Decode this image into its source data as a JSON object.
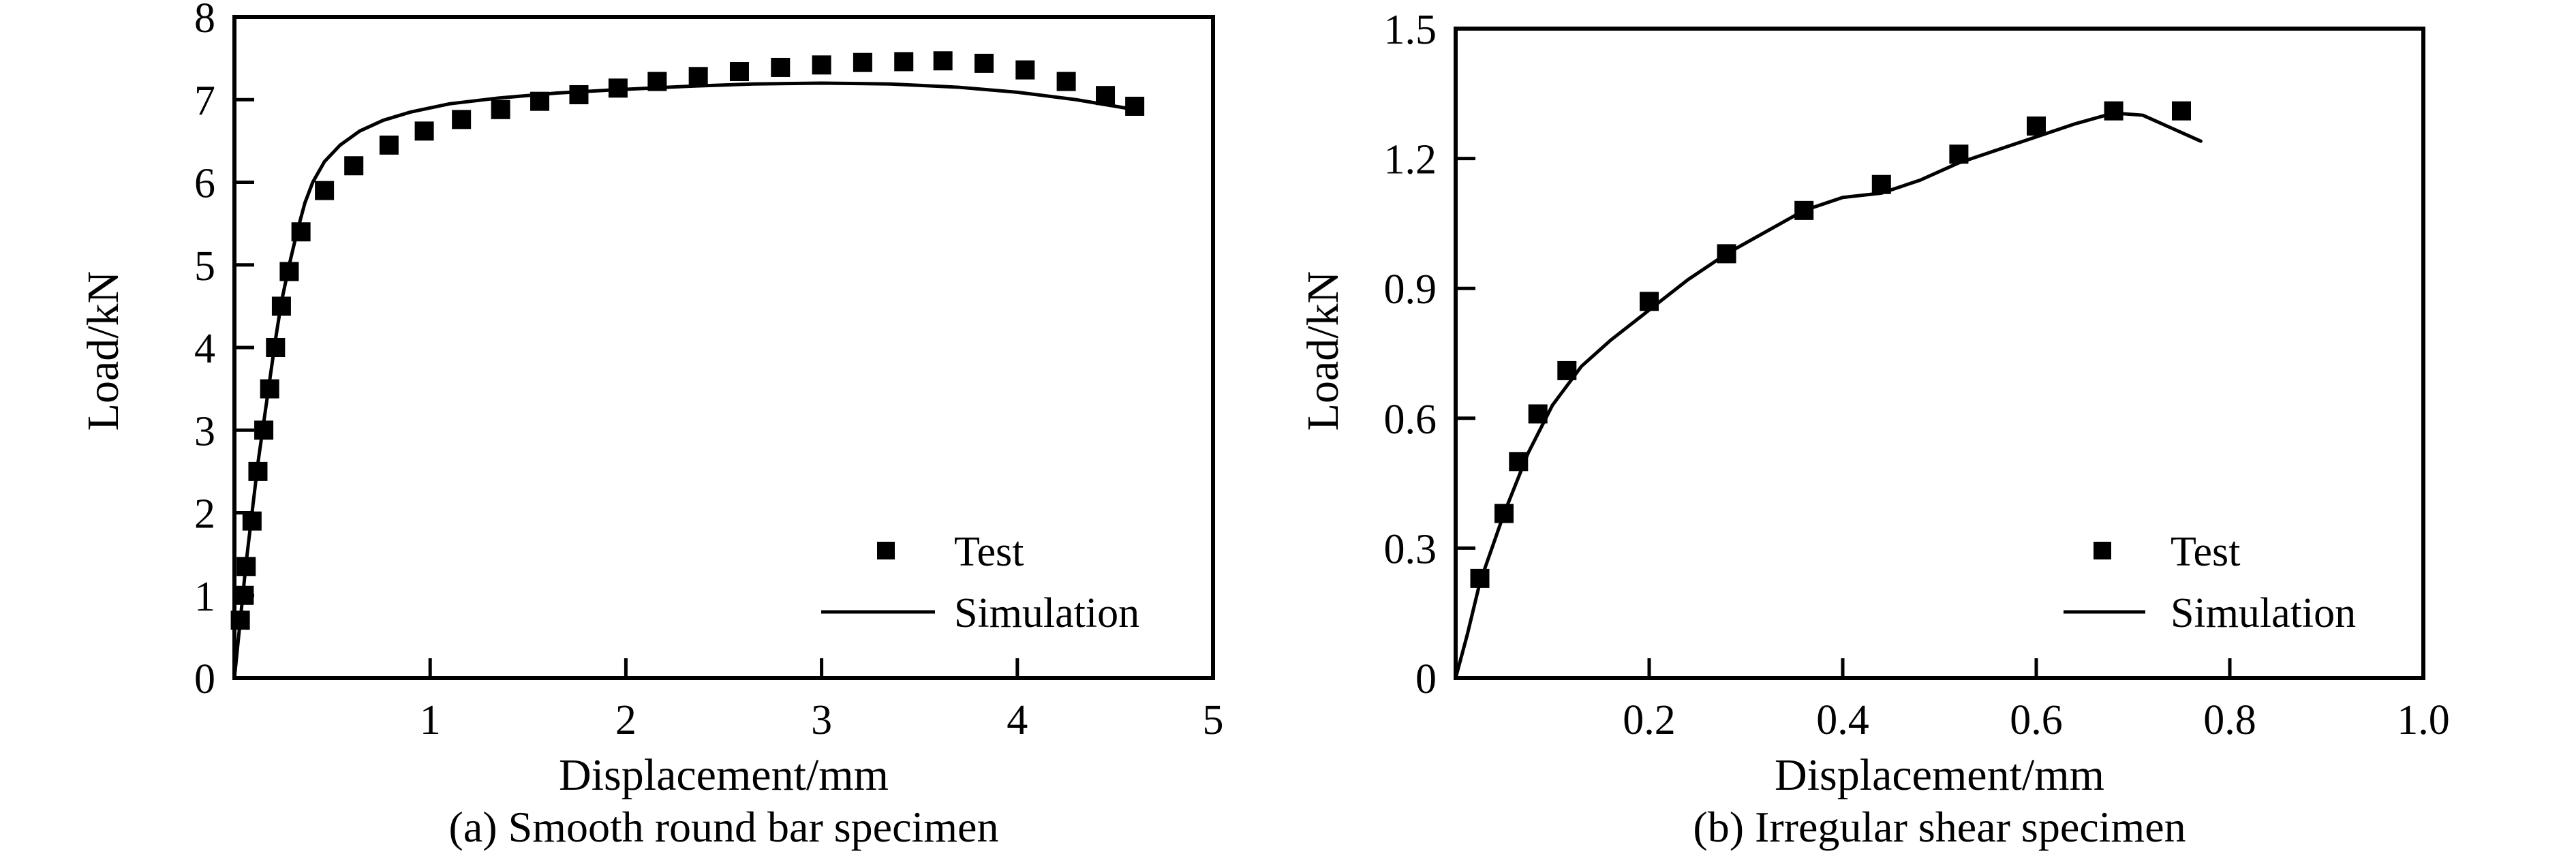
{
  "figure": {
    "background_color": "#ffffff",
    "ink_color": "#000000"
  },
  "chart_data": [
    {
      "type": "scatter",
      "title": "(a) Smooth round bar specimen",
      "xlabel": "Displacement/mm",
      "ylabel": "Load/kN",
      "xlim": [
        0,
        5
      ],
      "ylim": [
        0,
        8
      ],
      "grid": false,
      "xticks": [
        {
          "v": 1,
          "label": "1"
        },
        {
          "v": 2,
          "label": "2"
        },
        {
          "v": 3,
          "label": "3"
        },
        {
          "v": 4,
          "label": "4"
        },
        {
          "v": 5,
          "label": "5"
        }
      ],
      "yticks": [
        {
          "v": 0,
          "label": "0"
        },
        {
          "v": 1,
          "label": "1"
        },
        {
          "v": 2,
          "label": "2"
        },
        {
          "v": 3,
          "label": "3"
        },
        {
          "v": 4,
          "label": "4"
        },
        {
          "v": 5,
          "label": "5"
        },
        {
          "v": 6,
          "label": "6"
        },
        {
          "v": 7,
          "label": "7"
        },
        {
          "v": 8,
          "label": "8"
        }
      ],
      "legend": {
        "position": "inside lower right",
        "items": [
          {
            "swatch": "square-marker",
            "label": "Test"
          },
          {
            "swatch": "line",
            "label": "Simulation"
          }
        ]
      },
      "series": [
        {
          "name": "Test",
          "type": "scatter",
          "marker": "filled-square",
          "points": [
            [
              0.03,
              0.7
            ],
            [
              0.05,
              1.0
            ],
            [
              0.06,
              1.35
            ],
            [
              0.09,
              1.9
            ],
            [
              0.12,
              2.5
            ],
            [
              0.15,
              3.0
            ],
            [
              0.18,
              3.5
            ],
            [
              0.21,
              4.0
            ],
            [
              0.24,
              4.5
            ],
            [
              0.28,
              4.92
            ],
            [
              0.34,
              5.4
            ],
            [
              0.46,
              5.9
            ],
            [
              0.61,
              6.2
            ],
            [
              0.79,
              6.45
            ],
            [
              0.97,
              6.62
            ],
            [
              1.16,
              6.76
            ],
            [
              1.36,
              6.88
            ],
            [
              1.56,
              6.98
            ],
            [
              1.76,
              7.06
            ],
            [
              1.96,
              7.14
            ],
            [
              2.16,
              7.22
            ],
            [
              2.37,
              7.28
            ],
            [
              2.58,
              7.34
            ],
            [
              2.79,
              7.39
            ],
            [
              3.0,
              7.42
            ],
            [
              3.21,
              7.45
            ],
            [
              3.42,
              7.46
            ],
            [
              3.62,
              7.47
            ],
            [
              3.83,
              7.44
            ],
            [
              4.04,
              7.36
            ],
            [
              4.25,
              7.22
            ],
            [
              4.45,
              7.05
            ],
            [
              4.6,
              6.92
            ]
          ]
        },
        {
          "name": "Simulation",
          "type": "line",
          "points": [
            [
              0,
              0
            ],
            [
              0.03,
              0.7
            ],
            [
              0.06,
              1.4
            ],
            [
              0.09,
              2.0
            ],
            [
              0.12,
              2.6
            ],
            [
              0.15,
              3.1
            ],
            [
              0.18,
              3.6
            ],
            [
              0.21,
              4.1
            ],
            [
              0.24,
              4.55
            ],
            [
              0.28,
              5.0
            ],
            [
              0.32,
              5.4
            ],
            [
              0.36,
              5.75
            ],
            [
              0.4,
              6.0
            ],
            [
              0.46,
              6.25
            ],
            [
              0.54,
              6.45
            ],
            [
              0.64,
              6.62
            ],
            [
              0.76,
              6.75
            ],
            [
              0.9,
              6.85
            ],
            [
              1.1,
              6.95
            ],
            [
              1.35,
              7.02
            ],
            [
              1.65,
              7.08
            ],
            [
              1.95,
              7.12
            ],
            [
              2.3,
              7.16
            ],
            [
              2.65,
              7.19
            ],
            [
              3.0,
              7.2
            ],
            [
              3.35,
              7.19
            ],
            [
              3.7,
              7.15
            ],
            [
              4.0,
              7.09
            ],
            [
              4.3,
              7.0
            ],
            [
              4.6,
              6.88
            ]
          ]
        }
      ]
    },
    {
      "type": "scatter",
      "title": "(b) Irregular shear specimen",
      "xlabel": "Displacement/mm",
      "ylabel": "Load/kN",
      "xlim": [
        0,
        1.0
      ],
      "ylim": [
        0,
        1.5
      ],
      "grid": false,
      "xticks": [
        {
          "v": 0.2,
          "label": "0.2"
        },
        {
          "v": 0.4,
          "label": "0.4"
        },
        {
          "v": 0.6,
          "label": "0.6"
        },
        {
          "v": 0.8,
          "label": "0.8"
        },
        {
          "v": 1.0,
          "label": "1.0"
        }
      ],
      "yticks": [
        {
          "v": 0,
          "label": "0"
        },
        {
          "v": 0.3,
          "label": "0.3"
        },
        {
          "v": 0.6,
          "label": "0.6"
        },
        {
          "v": 0.9,
          "label": "0.9"
        },
        {
          "v": 1.2,
          "label": "1.2"
        },
        {
          "v": 1.5,
          "label": "1.5"
        }
      ],
      "legend": {
        "position": "inside lower right",
        "items": [
          {
            "swatch": "square-marker",
            "label": "Test"
          },
          {
            "swatch": "line",
            "label": "Simulation"
          }
        ]
      },
      "series": [
        {
          "name": "Test",
          "type": "scatter",
          "marker": "filled-square",
          "points": [
            [
              0.025,
              0.23
            ],
            [
              0.05,
              0.38
            ],
            [
              0.065,
              0.5
            ],
            [
              0.085,
              0.61
            ],
            [
              0.115,
              0.71
            ],
            [
              0.2,
              0.87
            ],
            [
              0.28,
              0.98
            ],
            [
              0.36,
              1.08
            ],
            [
              0.44,
              1.14
            ],
            [
              0.52,
              1.21
            ],
            [
              0.6,
              1.275
            ],
            [
              0.68,
              1.31
            ],
            [
              0.75,
              1.31
            ]
          ]
        },
        {
          "name": "Simulation",
          "type": "line",
          "points": [
            [
              0,
              0
            ],
            [
              0.012,
              0.1
            ],
            [
              0.025,
              0.22
            ],
            [
              0.05,
              0.38
            ],
            [
              0.075,
              0.52
            ],
            [
              0.1,
              0.63
            ],
            [
              0.13,
              0.72
            ],
            [
              0.16,
              0.78
            ],
            [
              0.2,
              0.85
            ],
            [
              0.24,
              0.92
            ],
            [
              0.28,
              0.98
            ],
            [
              0.32,
              1.03
            ],
            [
              0.36,
              1.08
            ],
            [
              0.4,
              1.11
            ],
            [
              0.44,
              1.12
            ],
            [
              0.48,
              1.15
            ],
            [
              0.52,
              1.19
            ],
            [
              0.56,
              1.22
            ],
            [
              0.6,
              1.25
            ],
            [
              0.64,
              1.28
            ],
            [
              0.68,
              1.305
            ],
            [
              0.71,
              1.3
            ],
            [
              0.74,
              1.27
            ],
            [
              0.77,
              1.24
            ]
          ]
        }
      ]
    }
  ]
}
